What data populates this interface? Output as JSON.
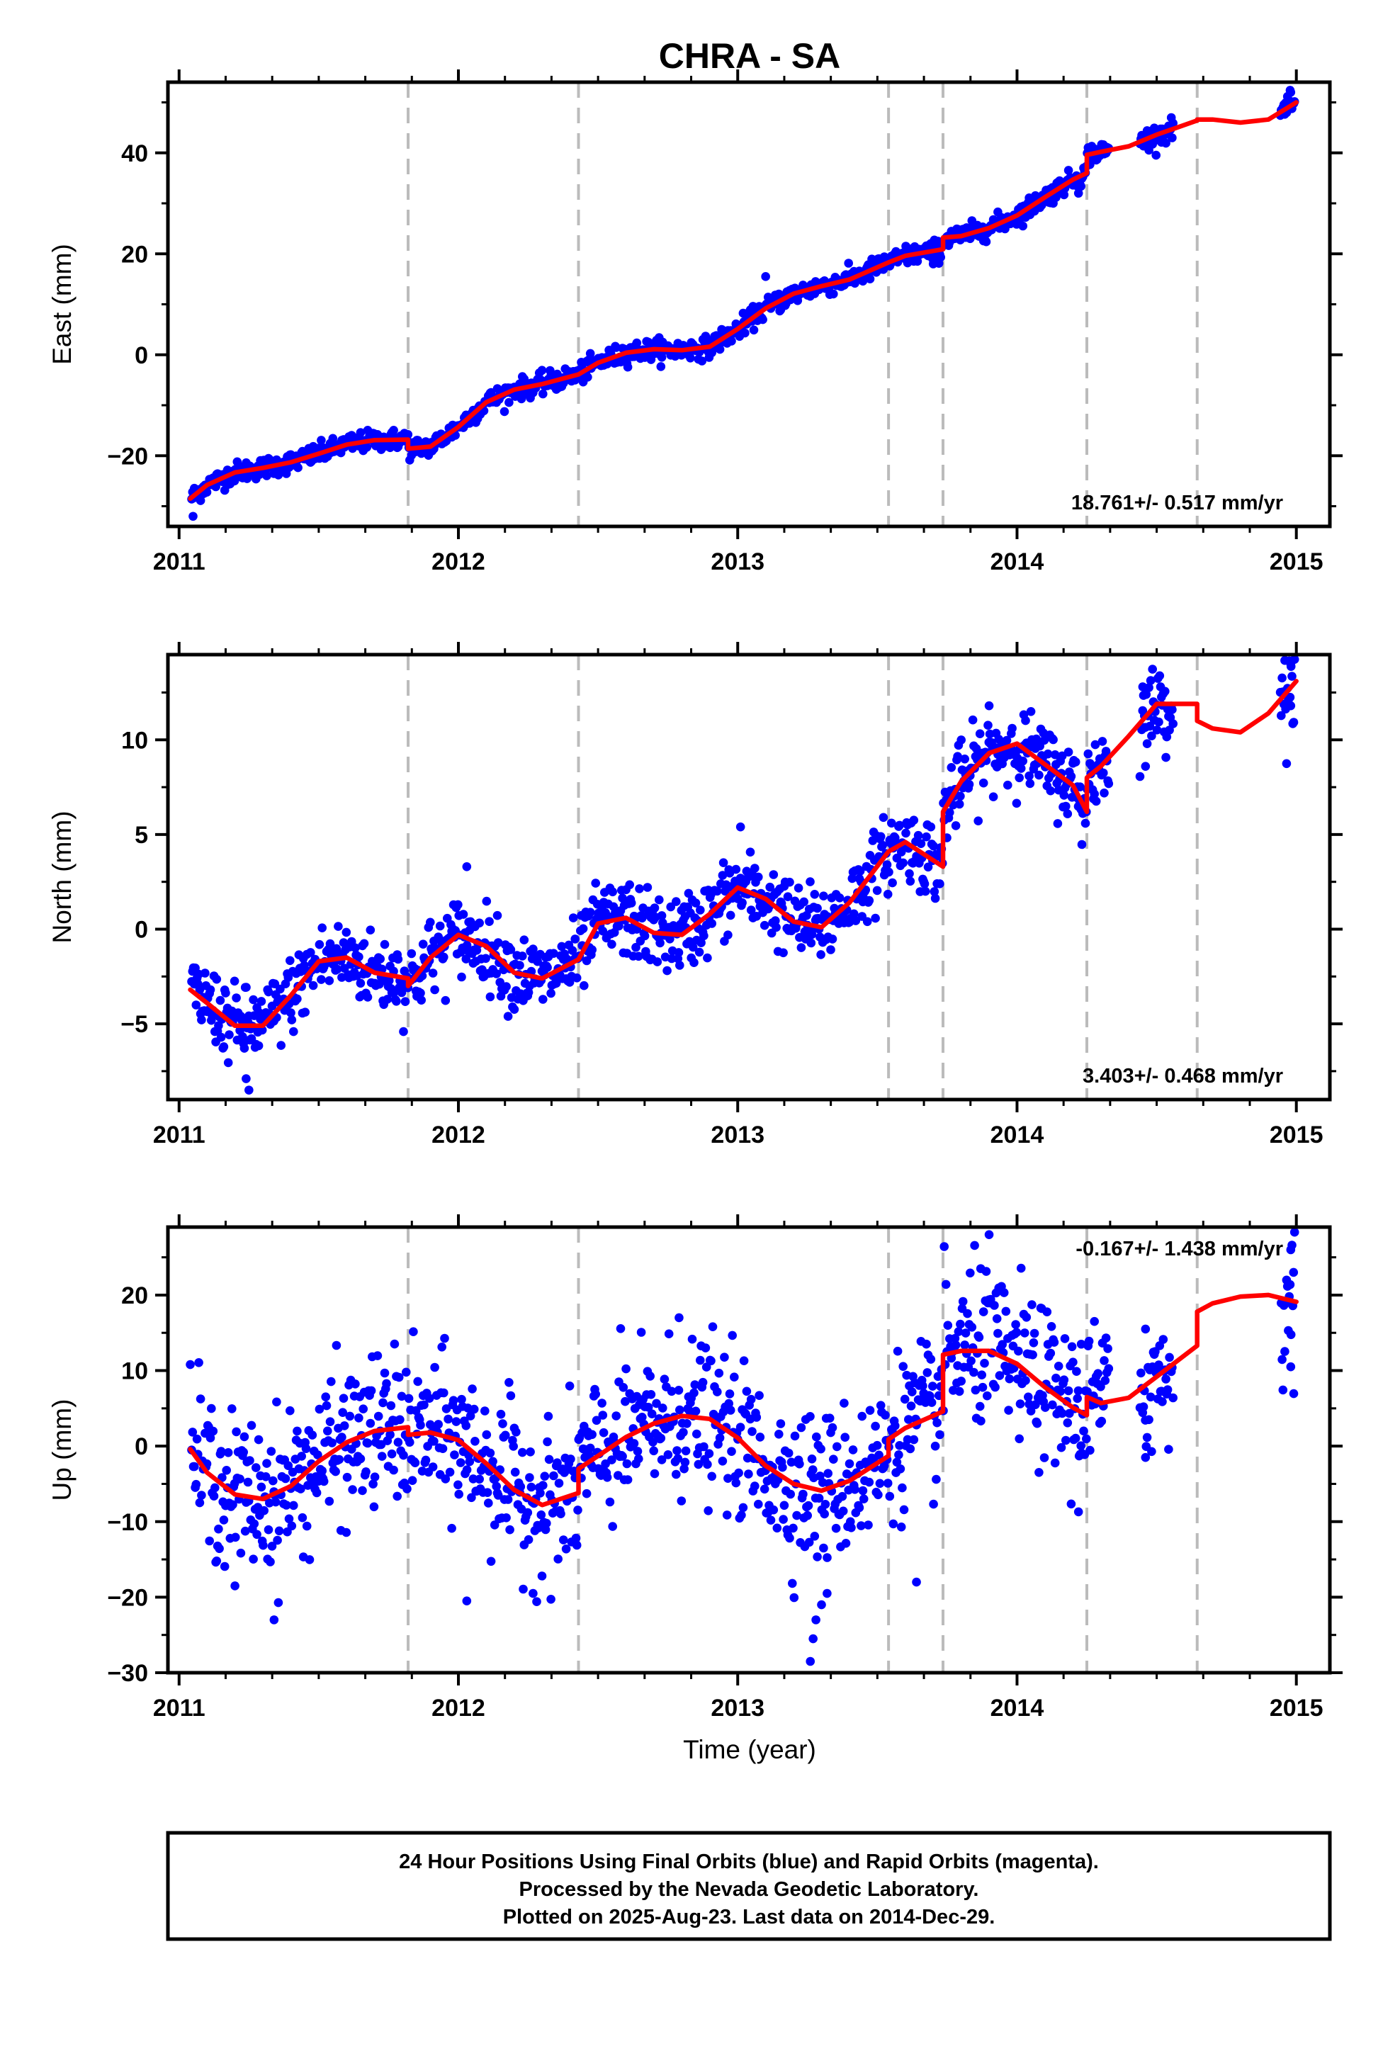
{
  "title": "CHRA - SA",
  "xlabel": "Time (year)",
  "xlim": [
    2010.96,
    2015.12
  ],
  "xticks": [
    "2011",
    "2012",
    "2013",
    "2014",
    "2015"
  ],
  "event_lines": [
    2011.82,
    2012.43,
    2013.54,
    2013.735,
    2014.25,
    2014.645
  ],
  "colors": {
    "points": "#0000ff",
    "fit": "#ff0000",
    "events": "#bbbbbb",
    "frame": "#000000"
  },
  "footer": {
    "line1": "24 Hour Positions Using Final Orbits (blue) and Rapid Orbits (magenta).",
    "line2": "Processed by the Nevada Geodetic Laboratory.",
    "line3": "Plotted on 2025-Aug-23. Last data on 2014-Dec-29."
  },
  "chart_data": [
    {
      "type": "scatter",
      "component": "east",
      "ylabel": "East (mm)",
      "ylim": [
        -34,
        54
      ],
      "yticks": [
        -20,
        0,
        20,
        40
      ],
      "ytick_labels": [
        "−20",
        "0",
        "20",
        "40"
      ],
      "rate_label": "18.761+/- 0.517 mm/yr",
      "rate_position": "bottom-right",
      "fit_segments": [
        {
          "x": [
            2011.04,
            2011.1,
            2011.2,
            2011.3,
            2011.4,
            2011.5,
            2011.6,
            2011.7,
            2011.82
          ],
          "y": [
            -28.5,
            -25.8,
            -23.3,
            -22.4,
            -21.3,
            -19.6,
            -17.8,
            -16.9,
            -16.8
          ]
        },
        {
          "x": [
            2011.82,
            2011.9,
            2012.0,
            2012.1,
            2012.2,
            2012.3,
            2012.43
          ],
          "y": [
            -18.6,
            -18.2,
            -14.3,
            -9.4,
            -6.9,
            -5.8,
            -3.9
          ]
        },
        {
          "x": [
            2012.43,
            2012.5,
            2012.6,
            2012.7,
            2012.8,
            2012.9,
            2013.0,
            2013.1,
            2013.2,
            2013.3,
            2013.4,
            2013.54
          ],
          "y": [
            -3.9,
            -1.6,
            0.4,
            1.1,
            0.9,
            1.6,
            5.1,
            9.2,
            12.1,
            13.6,
            14.9,
            18.3
          ]
        },
        {
          "x": [
            2013.54,
            2013.6,
            2013.735
          ],
          "y": [
            18.3,
            19.6,
            20.9
          ]
        },
        {
          "x": [
            2013.735,
            2013.8,
            2013.9,
            2014.0,
            2014.1,
            2014.2,
            2014.25
          ],
          "y": [
            23.2,
            23.5,
            25.1,
            27.6,
            31.2,
            34.7,
            36.0
          ]
        },
        {
          "x": [
            2014.25,
            2014.3,
            2014.4,
            2014.5,
            2014.645
          ],
          "y": [
            39.6,
            40.2,
            41.3,
            43.6,
            46.4
          ]
        },
        {
          "x": [
            2014.645,
            2014.7,
            2014.8,
            2014.9,
            2015.0
          ],
          "y": [
            46.6,
            46.6,
            46.0,
            46.6,
            50.0
          ]
        }
      ],
      "point_gaps": [
        [
          2014.33,
          2014.44
        ],
        [
          2014.56,
          2014.94
        ]
      ],
      "noise": 1.0,
      "outliers": [
        {
          "x": 2011.05,
          "y": -32.0
        },
        {
          "x": 2013.1,
          "y": 15.5
        },
        {
          "x": 2013.7,
          "y": 18.0
        },
        {
          "x": 2014.98,
          "y": 52.0
        },
        {
          "x": 2014.97,
          "y": 48.5
        },
        {
          "x": 2014.22,
          "y": 32.0
        }
      ]
    },
    {
      "type": "scatter",
      "component": "north",
      "ylabel": "North (mm)",
      "ylim": [
        -9,
        14.5
      ],
      "yticks": [
        -5,
        0,
        5,
        10
      ],
      "ytick_labels": [
        "−5",
        "0",
        "5",
        "10"
      ],
      "rate_label": "3.403+/- 0.468 mm/yr",
      "rate_position": "bottom-right",
      "fit_segments": [
        {
          "x": [
            2011.04,
            2011.1,
            2011.2,
            2011.3,
            2011.4,
            2011.5,
            2011.6,
            2011.7,
            2011.82
          ],
          "y": [
            -3.2,
            -3.9,
            -5.1,
            -5.1,
            -3.5,
            -1.7,
            -1.5,
            -2.3,
            -2.6
          ]
        },
        {
          "x": [
            2011.82,
            2011.9,
            2012.0,
            2012.1,
            2012.2,
            2012.3,
            2012.43
          ],
          "y": [
            -3.0,
            -1.5,
            -0.3,
            -0.9,
            -2.3,
            -2.6,
            -1.6
          ]
        },
        {
          "x": [
            2012.43,
            2012.5,
            2012.6,
            2012.7,
            2012.8,
            2012.9,
            2013.0,
            2013.1,
            2013.2,
            2013.3,
            2013.4,
            2013.54
          ],
          "y": [
            -1.6,
            0.3,
            0.6,
            -0.2,
            -0.3,
            0.8,
            2.2,
            1.6,
            0.4,
            0.1,
            1.4,
            4.1
          ]
        },
        {
          "x": [
            2013.54,
            2013.6,
            2013.735
          ],
          "y": [
            4.1,
            4.6,
            3.3
          ]
        },
        {
          "x": [
            2013.735,
            2013.8,
            2013.9,
            2014.0,
            2014.1,
            2014.2,
            2014.25
          ],
          "y": [
            6.2,
            7.8,
            9.3,
            9.8,
            8.7,
            7.6,
            6.2
          ]
        },
        {
          "x": [
            2014.25,
            2014.3,
            2014.4,
            2014.5,
            2014.645
          ],
          "y": [
            8.0,
            8.6,
            10.2,
            11.9,
            11.9
          ]
        },
        {
          "x": [
            2014.645,
            2014.7,
            2014.8,
            2014.9,
            2015.0
          ],
          "y": [
            11.0,
            10.6,
            10.4,
            11.4,
            13.1
          ]
        }
      ],
      "point_gaps": [
        [
          2014.33,
          2014.44
        ],
        [
          2014.56,
          2014.94
        ]
      ],
      "noise": 1.0,
      "outliers": [
        {
          "x": 2011.25,
          "y": -8.5
        },
        {
          "x": 2011.24,
          "y": -7.9
        },
        {
          "x": 2012.03,
          "y": 3.3
        },
        {
          "x": 2013.01,
          "y": 5.4
        },
        {
          "x": 2013.9,
          "y": 11.8
        },
        {
          "x": 2014.98,
          "y": 14.0
        },
        {
          "x": 2014.98,
          "y": 11.8
        },
        {
          "x": 2014.45,
          "y": 12.8
        },
        {
          "x": 2014.46,
          "y": 8.6
        }
      ]
    },
    {
      "type": "scatter",
      "component": "up",
      "ylabel": "Up (mm)",
      "ylim": [
        -30,
        29
      ],
      "yticks": [
        -30,
        -20,
        -10,
        0,
        10,
        20
      ],
      "ytick_labels": [
        "−30",
        "−20",
        "−10",
        "0",
        "10",
        "20"
      ],
      "rate_label": "-0.167+/- 1.438 mm/yr",
      "rate_position": "top-right",
      "fit_segments": [
        {
          "x": [
            2011.04,
            2011.1,
            2011.2,
            2011.3,
            2011.4,
            2011.5,
            2011.6,
            2011.7,
            2011.82
          ],
          "y": [
            -0.4,
            -3.5,
            -6.4,
            -7.0,
            -5.3,
            -2.0,
            0.5,
            2.0,
            2.5
          ]
        },
        {
          "x": [
            2011.82,
            2011.9,
            2012.0,
            2012.1,
            2012.2,
            2012.3,
            2012.43
          ],
          "y": [
            1.5,
            1.8,
            0.8,
            -2.3,
            -5.8,
            -7.8,
            -6.2
          ]
        },
        {
          "x": [
            2012.43,
            2012.5,
            2012.6,
            2012.7,
            2012.8,
            2012.9,
            2013.0,
            2013.1,
            2013.2,
            2013.3,
            2013.4,
            2013.54
          ],
          "y": [
            -3.0,
            -1.3,
            1.2,
            3.0,
            4.0,
            3.6,
            1.1,
            -2.6,
            -5.0,
            -5.9,
            -4.6,
            -1.3
          ]
        },
        {
          "x": [
            2013.54,
            2013.6,
            2013.735
          ],
          "y": [
            0.9,
            2.4,
            4.6
          ]
        },
        {
          "x": [
            2013.735,
            2013.8,
            2013.9,
            2014.0,
            2014.1,
            2014.2,
            2014.25
          ],
          "y": [
            12.1,
            12.6,
            12.6,
            10.9,
            7.8,
            5.1,
            4.1
          ]
        },
        {
          "x": [
            2014.25,
            2014.3,
            2014.4,
            2014.5,
            2014.645
          ],
          "y": [
            6.5,
            5.7,
            6.4,
            9.2,
            13.3
          ]
        },
        {
          "x": [
            2014.645,
            2014.7,
            2014.8,
            2014.9,
            2015.0
          ],
          "y": [
            17.8,
            18.9,
            19.8,
            20.0,
            19.1
          ]
        }
      ],
      "point_gaps": [
        [
          2014.33,
          2014.44
        ],
        [
          2014.56,
          2014.94
        ]
      ],
      "noise": 5.0,
      "outliers": [
        {
          "x": 2013.26,
          "y": -28.5
        },
        {
          "x": 2013.27,
          "y": -25.5
        },
        {
          "x": 2013.28,
          "y": -23.0
        },
        {
          "x": 2013.3,
          "y": -21.0
        },
        {
          "x": 2013.32,
          "y": -19.5
        },
        {
          "x": 2011.34,
          "y": -23.0
        },
        {
          "x": 2011.2,
          "y": -18.5
        },
        {
          "x": 2012.03,
          "y": -20.5
        },
        {
          "x": 2013.64,
          "y": -18.0
        },
        {
          "x": 2013.9,
          "y": 28.0
        },
        {
          "x": 2013.87,
          "y": 23.5
        },
        {
          "x": 2014.98,
          "y": 26.0
        },
        {
          "x": 2014.98,
          "y": 10.5
        },
        {
          "x": 2014.99,
          "y": 23.0
        },
        {
          "x": 2014.22,
          "y": -8.7
        },
        {
          "x": 2014.23,
          "y": 13.5
        },
        {
          "x": 2014.46,
          "y": -1.5
        },
        {
          "x": 2014.46,
          "y": 15.5
        },
        {
          "x": 2012.79,
          "y": 17.0
        },
        {
          "x": 2011.04,
          "y": 10.8
        }
      ]
    }
  ]
}
